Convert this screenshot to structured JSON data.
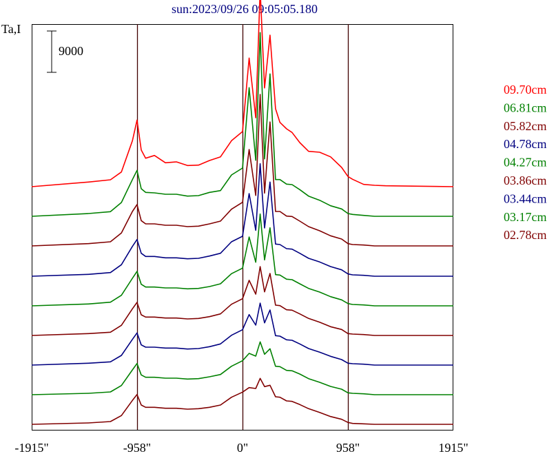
{
  "chart_data": {
    "type": "line",
    "title": "sun:2023/09/26 09:05:05.180",
    "ylabel": "Ta,I",
    "scale_bar_label": "9000",
    "scale_bar_value": 9000,
    "xlim": [
      -1915,
      1915
    ],
    "x_ticks": [
      {
        "value": -1915,
        "label": "-1915\""
      },
      {
        "value": -958,
        "label": "-958\""
      },
      {
        "value": 0,
        "label": "0\""
      },
      {
        "value": 958,
        "label": "958\""
      },
      {
        "value": 1915,
        "label": "1915\""
      }
    ],
    "vertical_lines": [
      -958,
      0,
      958
    ],
    "x": [
      -1915,
      -1400,
      -1200,
      -1100,
      -1000,
      -958,
      -920,
      -880,
      -800,
      -700,
      -600,
      -500,
      -400,
      -300,
      -200,
      -100,
      0,
      60,
      120,
      160,
      200,
      250,
      300,
      340,
      400,
      450,
      520,
      600,
      700,
      800,
      900,
      958,
      1000,
      1100,
      1200,
      1300,
      1915
    ],
    "series": [
      {
        "name": "09.70cm",
        "color": "#ff0000",
        "baseline_y": 271,
        "values": [
          0,
          1000,
          1500,
          3200,
          10000,
          14500,
          8000,
          6200,
          6800,
          5200,
          5400,
          4600,
          4700,
          5700,
          6500,
          10000,
          12000,
          28000,
          15000,
          43000,
          21500,
          33000,
          17000,
          14000,
          12600,
          11800,
          9600,
          7700,
          7500,
          6500,
          4200,
          2200,
          1600,
          500,
          300,
          200,
          0
        ]
      },
      {
        "name": "06.81cm",
        "color": "#008000",
        "baseline_y": 314,
        "values": [
          0,
          600,
          1000,
          3000,
          8000,
          10000,
          6000,
          5200,
          5100,
          4800,
          4800,
          4400,
          4500,
          5200,
          5600,
          9000,
          10500,
          28000,
          12200,
          40000,
          12500,
          31000,
          8000,
          8000,
          7000,
          6900,
          5800,
          4400,
          3500,
          2300,
          1600,
          600,
          400,
          200,
          0,
          0,
          0
        ]
      },
      {
        "name": "05.82cm",
        "color": "#800000",
        "baseline_y": 357,
        "values": [
          0,
          500,
          900,
          2800,
          7500,
          9000,
          5500,
          4800,
          4800,
          4500,
          4500,
          4200,
          4300,
          4800,
          5400,
          8000,
          9500,
          21000,
          11000,
          33000,
          11500,
          27000,
          7500,
          7500,
          6500,
          6400,
          5400,
          4200,
          3300,
          2200,
          1500,
          500,
          300,
          200,
          0,
          0,
          0
        ]
      },
      {
        "name": "04.78cm",
        "color": "#000080",
        "baseline_y": 401,
        "values": [
          0,
          400,
          800,
          2500,
          6500,
          8000,
          5000,
          4300,
          4300,
          4000,
          4000,
          3800,
          3900,
          4400,
          5000,
          7500,
          8700,
          18000,
          10000,
          24500,
          10500,
          20500,
          7000,
          6900,
          6000,
          5900,
          5000,
          3900,
          3100,
          2100,
          1400,
          500,
          300,
          200,
          0,
          0,
          0
        ]
      },
      {
        "name": "04.27cm",
        "color": "#008000",
        "baseline_y": 444,
        "values": [
          0,
          400,
          800,
          2300,
          6000,
          7500,
          4700,
          4100,
          4100,
          3900,
          3900,
          3700,
          3800,
          4200,
          4800,
          7000,
          8200,
          15000,
          9500,
          20000,
          10000,
          17000,
          6800,
          6700,
          5800,
          5700,
          4800,
          3800,
          3000,
          2000,
          1300,
          500,
          300,
          200,
          0,
          0,
          0
        ]
      },
      {
        "name": "03.86cm",
        "color": "#800000",
        "baseline_y": 487,
        "values": [
          0,
          400,
          700,
          2200,
          5800,
          7200,
          4500,
          4000,
          4000,
          3800,
          3800,
          3600,
          3700,
          4100,
          4700,
          6800,
          8000,
          12000,
          9000,
          15000,
          9500,
          13500,
          6600,
          6500,
          5600,
          5500,
          4700,
          3700,
          2900,
          1900,
          1300,
          400,
          300,
          200,
          0,
          0,
          0
        ]
      },
      {
        "name": "03.44cm",
        "color": "#000080",
        "baseline_y": 530,
        "values": [
          0,
          400,
          700,
          2100,
          5600,
          7000,
          4400,
          3900,
          3900,
          3700,
          3700,
          3500,
          3600,
          4000,
          4600,
          6500,
          7700,
          11000,
          8700,
          13500,
          9200,
          12000,
          6400,
          6300,
          5500,
          5400,
          4600,
          3600,
          2800,
          1900,
          1200,
          400,
          300,
          200,
          0,
          0,
          0
        ]
      },
      {
        "name": "03.17cm",
        "color": "#008000",
        "baseline_y": 573,
        "values": [
          0,
          300,
          600,
          2000,
          5400,
          6800,
          4300,
          3800,
          3800,
          3600,
          3600,
          3400,
          3500,
          3900,
          4400,
          6200,
          7400,
          9000,
          8400,
          11500,
          8800,
          10000,
          6200,
          6100,
          5300,
          5200,
          4500,
          3500,
          2700,
          1800,
          1200,
          400,
          300,
          200,
          0,
          0,
          0
        ]
      },
      {
        "name": "02.78cm",
        "color": "#800000",
        "baseline_y": 616,
        "values": [
          0,
          300,
          600,
          1900,
          5200,
          6500,
          4200,
          3700,
          3700,
          3500,
          3500,
          3300,
          3400,
          3700,
          4200,
          5900,
          7000,
          8000,
          7800,
          10000,
          8200,
          8500,
          6000,
          5900,
          5100,
          5000,
          4300,
          3400,
          2600,
          1700,
          1100,
          400,
          200,
          100,
          0,
          0,
          0
        ]
      }
    ]
  }
}
